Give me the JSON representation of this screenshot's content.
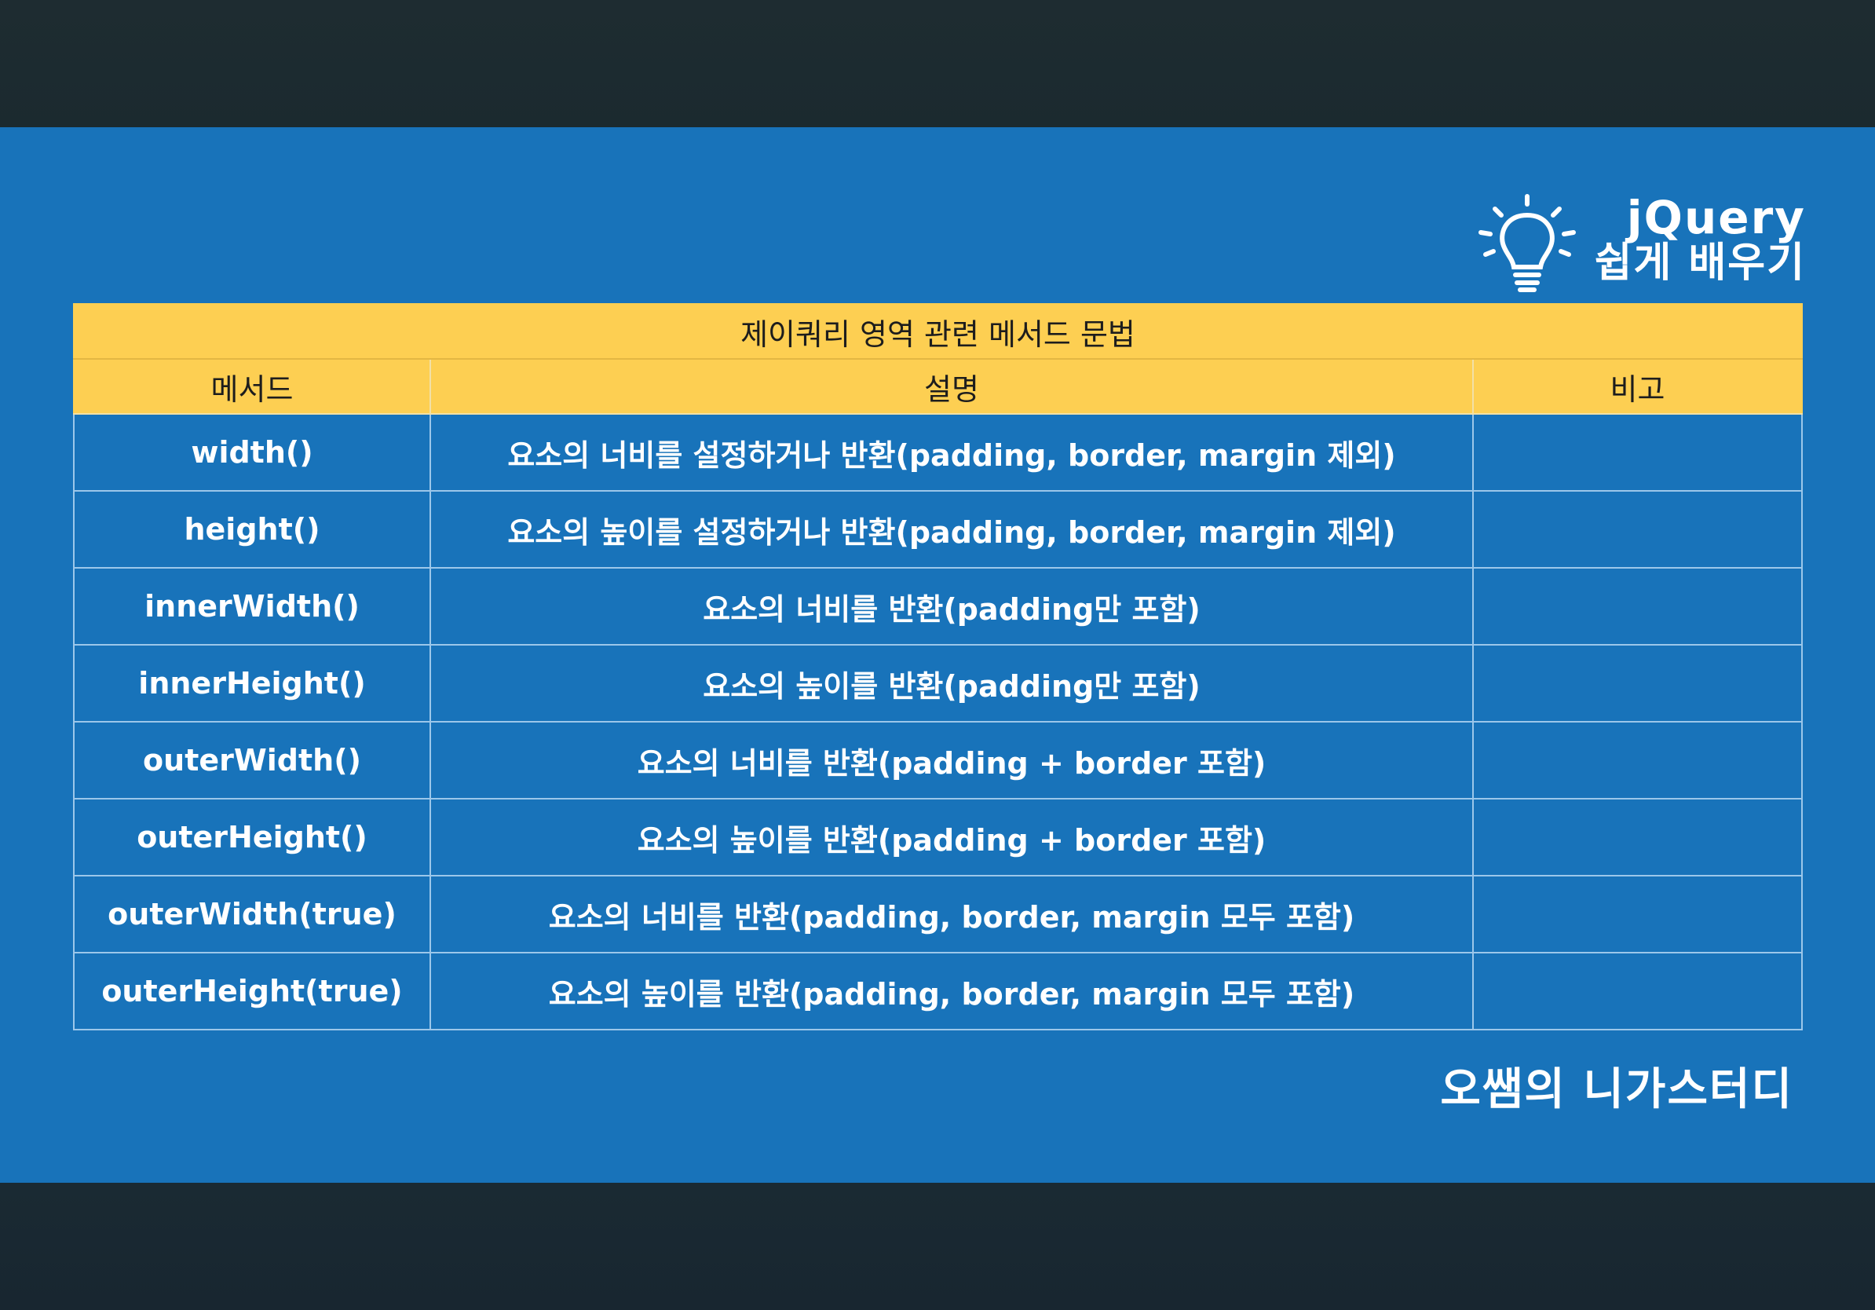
{
  "logo": {
    "line1": "jQuery",
    "line2": "쉽게 배우기"
  },
  "table": {
    "title": "제이쿼리 영역 관련 메서드 문법",
    "headers": [
      "메서드",
      "설명",
      "비고"
    ],
    "rows": [
      {
        "method": "width()",
        "description": "요소의 너비를 설정하거나 반환(padding, border, margin 제외)",
        "note": ""
      },
      {
        "method": "height()",
        "description": "요소의 높이를 설정하거나 반환(padding, border, margin 제외)",
        "note": ""
      },
      {
        "method": "innerWidth()",
        "description": "요소의 너비를 반환(padding만 포함)",
        "note": ""
      },
      {
        "method": "innerHeight()",
        "description": "요소의 높이를 반환(padding만 포함)",
        "note": ""
      },
      {
        "method": "outerWidth()",
        "description": "요소의 너비를 반환(padding + border 포함)",
        "note": ""
      },
      {
        "method": "outerHeight()",
        "description": "요소의 높이를 반환(padding + border 포함)",
        "note": ""
      },
      {
        "method": "outerWidth(true)",
        "description": "요소의 너비를 반환(padding, border, margin 모두 포함)",
        "note": ""
      },
      {
        "method": "outerHeight(true)",
        "description": "요소의 높이를 반환(padding, border, margin 모두 포함)",
        "note": ""
      }
    ]
  },
  "brand": "오쌤의 니가스터디",
  "colors": {
    "slide_background": "#1873ba",
    "header_background": "#fdcf52",
    "frame_background": "#1c2a30",
    "grid_lines": "#9cc7ea"
  },
  "icons": [
    "lightbulb-icon"
  ]
}
